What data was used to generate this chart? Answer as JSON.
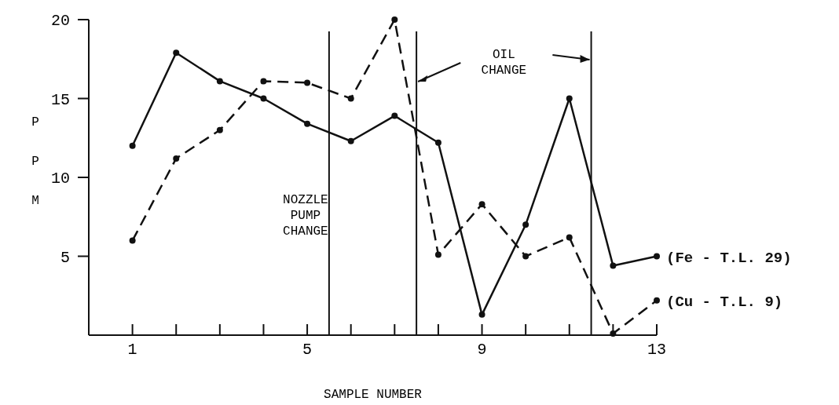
{
  "chart_data": {
    "type": "line",
    "xlabel": "SAMPLE NUMBER",
    "ylabel": "PPM",
    "x": [
      1,
      2,
      3,
      4,
      5,
      6,
      7,
      8,
      9,
      10,
      11,
      12,
      13
    ],
    "series": [
      {
        "name": "(Fe - T.L. 29)",
        "color": "#111111",
        "line_style": "solid",
        "values": [
          12.0,
          17.9,
          16.1,
          15.0,
          13.4,
          12.3,
          13.9,
          12.2,
          1.3,
          7.0,
          15.0,
          4.4,
          5.0
        ]
      },
      {
        "name": "(Cu - T.L. 9)",
        "color": "#111111",
        "line_style": "dashed",
        "values": [
          6.0,
          11.2,
          13.0,
          16.1,
          16.0,
          15.0,
          20.0,
          5.1,
          8.3,
          5.0,
          6.2,
          0.1,
          2.2
        ]
      }
    ],
    "xlim": [
      0,
      13
    ],
    "xticks": [
      1,
      {
        "value": 2,
        "label": null
      },
      {
        "value": 3,
        "label": null
      },
      {
        "value": 4,
        "label": null
      },
      5,
      {
        "value": 6,
        "label": null
      },
      {
        "value": 7,
        "label": null
      },
      {
        "value": 8,
        "label": null
      },
      9,
      {
        "value": 10,
        "label": null
      },
      {
        "value": 11,
        "label": null
      },
      {
        "value": 12,
        "label": null
      },
      13
    ],
    "ylim": [
      0,
      20
    ],
    "yticks": [
      5,
      10,
      15,
      20
    ],
    "ref_lines": [
      {
        "axis": "x",
        "value": 5.5,
        "label": "NOZZLE\nPUMP\nCHANGE",
        "color": "#111111"
      },
      {
        "axis": "x",
        "value": 7.5,
        "color": "#111111"
      },
      {
        "axis": "x",
        "value": 11.5,
        "color": "#111111"
      }
    ],
    "annotations": [
      "OIL\nCHANGE"
    ],
    "marker": "circle",
    "grid": false
  }
}
